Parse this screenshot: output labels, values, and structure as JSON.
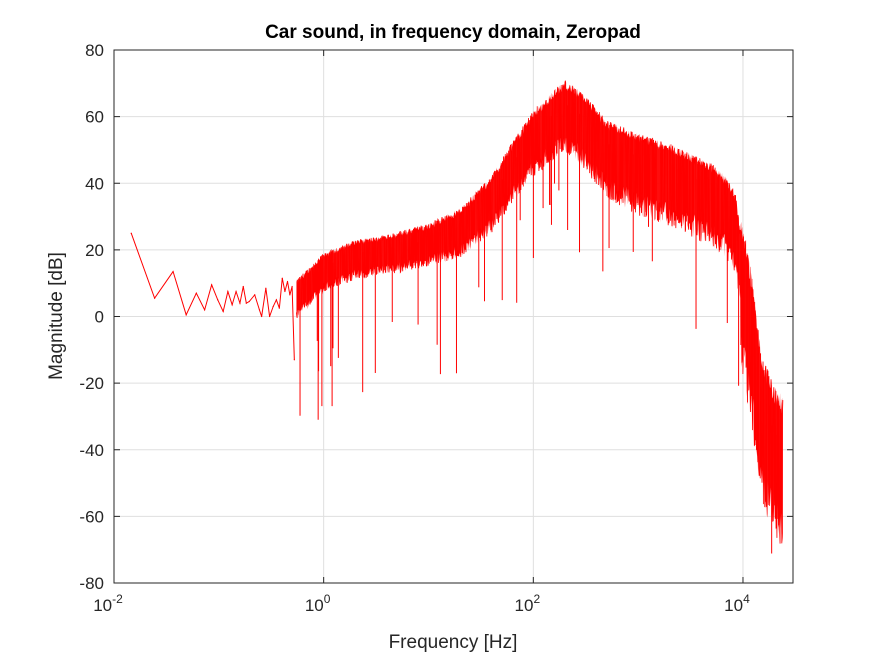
{
  "chart_data": {
    "type": "line",
    "title": "Car sound, in frequency domain, Zeropad",
    "xlabel": "Frequency [Hz]",
    "ylabel": "Magnitude [dB]",
    "xscale": "log",
    "xlim": [
      0.01,
      30000
    ],
    "ylim": [
      -80,
      80
    ],
    "grid": true,
    "series_color": "#ff0000",
    "x_ticks": [
      {
        "base": "10",
        "exp": "-2",
        "value": 0.01
      },
      {
        "base": "10",
        "exp": "0",
        "value": 1
      },
      {
        "base": "10",
        "exp": "2",
        "value": 100
      },
      {
        "base": "10",
        "exp": "4",
        "value": 10000
      }
    ],
    "y_ticks": [
      "80",
      "60",
      "40",
      "20",
      "0",
      "-20",
      "-40",
      "-60",
      "-80"
    ],
    "y_tick_values": [
      80,
      60,
      40,
      20,
      0,
      -20,
      -40,
      -60,
      -80
    ],
    "series": [
      {
        "name": "",
        "noise": 0,
        "points": [
          [
            0.0146,
            25
          ],
          [
            0.0244,
            5.5
          ],
          [
            0.0366,
            13.5
          ],
          [
            0.0488,
            0.5
          ],
          [
            0.061,
            7
          ],
          [
            0.0732,
            2
          ],
          [
            0.0854,
            9.5
          ],
          [
            0.0976,
            5
          ],
          [
            0.11,
            1.5
          ],
          [
            0.122,
            7.5
          ],
          [
            0.134,
            3.5
          ],
          [
            0.146,
            7.5
          ],
          [
            0.159,
            4
          ],
          [
            0.171,
            9
          ],
          [
            0.183,
            4
          ],
          [
            0.195,
            4.5
          ],
          [
            0.22,
            6.5
          ],
          [
            0.244,
            2
          ],
          [
            0.256,
            0
          ],
          [
            0.281,
            8.5
          ],
          [
            0.305,
            0
          ],
          [
            0.33,
            3
          ],
          [
            0.354,
            5
          ],
          [
            0.378,
            2.5
          ],
          [
            0.403,
            11.5
          ],
          [
            0.427,
            7.5
          ],
          [
            0.452,
            10.5
          ],
          [
            0.476,
            6.5
          ],
          [
            0.5,
            9
          ],
          [
            0.525,
            -13
          ]
        ]
      },
      {
        "name": "",
        "noise": 1,
        "points": [
          [
            0.55,
            7
          ],
          [
            1.0,
            15
          ],
          [
            2.0,
            19
          ],
          [
            5.0,
            21
          ],
          [
            10.0,
            23
          ],
          [
            20.0,
            27
          ],
          [
            40.0,
            36
          ],
          [
            60.0,
            45
          ],
          [
            100.0,
            55
          ],
          [
            200.0,
            64
          ],
          [
            300.0,
            60
          ],
          [
            500.0,
            52
          ],
          [
            1000.0,
            48
          ],
          [
            2000.0,
            45
          ],
          [
            5000.0,
            39
          ],
          [
            7000.0,
            35
          ],
          [
            8500.0,
            30
          ],
          [
            10000.0,
            13
          ],
          [
            12000.0,
            0
          ],
          [
            15000.0,
            -25
          ],
          [
            20000.0,
            -35
          ],
          [
            24000.0,
            -38
          ]
        ]
      }
    ]
  }
}
